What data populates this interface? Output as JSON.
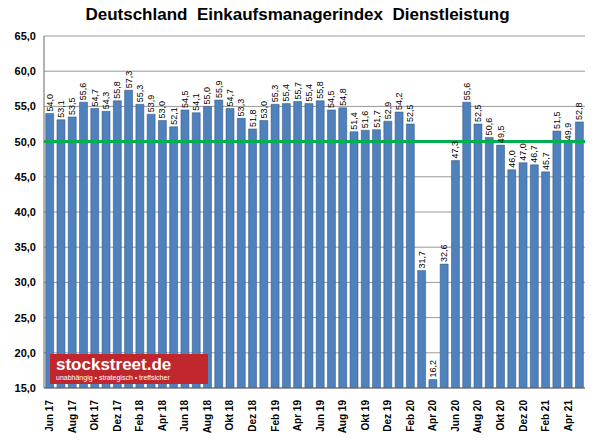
{
  "chart_data": {
    "type": "bar",
    "title": "Deutschland  Einkaufsmanagerindex  Dienstleistung",
    "categories": [
      "Jun 17",
      null,
      "Aug 17",
      null,
      "Okt 17",
      null,
      "Dez 17",
      null,
      "Feb 18",
      null,
      "Apr 18",
      null,
      "Jun 18",
      null,
      "Aug 18",
      null,
      "Okt 18",
      null,
      "Dez 18",
      null,
      "Feb 19",
      null,
      "Apr 19",
      null,
      "Jun 19",
      null,
      "Aug 19",
      null,
      "Okt 19",
      null,
      "Dez 19",
      null,
      "Feb 20",
      null,
      "Apr 20",
      null,
      "Jun 20",
      null,
      "Aug 20",
      null,
      "Okt 20",
      null,
      "Dez 20",
      null,
      "Feb 21",
      null,
      "Apr 21",
      null
    ],
    "values": [
      54.0,
      53.1,
      53.5,
      55.6,
      54.7,
      54.3,
      55.8,
      57.3,
      55.3,
      53.9,
      53.0,
      52.1,
      54.5,
      54.1,
      55.0,
      55.9,
      54.7,
      53.3,
      51.8,
      53.0,
      55.3,
      55.4,
      55.7,
      55.4,
      55.8,
      54.5,
      54.8,
      51.4,
      51.6,
      51.7,
      52.9,
      54.2,
      52.5,
      31.7,
      16.2,
      32.6,
      47.3,
      55.6,
      52.5,
      50.6,
      49.5,
      46.0,
      47.0,
      46.7,
      45.7,
      51.5,
      49.9,
      52.8
    ],
    "value_labels": [
      "54,0",
      "53,1",
      "53,5",
      "55,6",
      "54,7",
      "54,3",
      "55,8",
      "57,3",
      "55,3",
      "53,9",
      "53,0",
      "52,1",
      "54,5",
      "54,1",
      "55,0",
      "55,9",
      "54,7",
      "53,3",
      "51,8",
      "53,0",
      "55,3",
      "55,4",
      "55,7",
      "55,4",
      "55,8",
      "54,5",
      "54,8",
      "51,4",
      "51,6",
      "51,7",
      "52,9",
      "54,2",
      "52,5",
      "31,7",
      "16,2",
      "32,6",
      "47,3",
      "55,6",
      "52,5",
      "50,6",
      "49,5",
      "46,0",
      "47,0",
      "46,7",
      "45,7",
      "51,5",
      "49,9",
      "52,8"
    ],
    "data_labels": true,
    "color": "#4f81bd",
    "ylim": [
      15,
      65
    ],
    "yticks": [
      {
        "value": 15,
        "label": "15,0"
      },
      {
        "value": 20,
        "label": "20,0"
      },
      {
        "value": 25,
        "label": "25,0"
      },
      {
        "value": 30,
        "label": "30,0"
      },
      {
        "value": 35,
        "label": "35,0"
      },
      {
        "value": 40,
        "label": "40,0"
      },
      {
        "value": 45,
        "label": "45,0"
      },
      {
        "value": 50,
        "label": "50,0"
      },
      {
        "value": 55,
        "label": "55,0"
      },
      {
        "value": 60,
        "label": "60,0"
      },
      {
        "value": 65,
        "label": "65,0"
      }
    ],
    "grid": true,
    "reference_line": {
      "value": 50,
      "color": "#00b050"
    },
    "source": "stockstreet.de",
    "source_tagline": "unabhängig • strategisch • treffsicher"
  }
}
